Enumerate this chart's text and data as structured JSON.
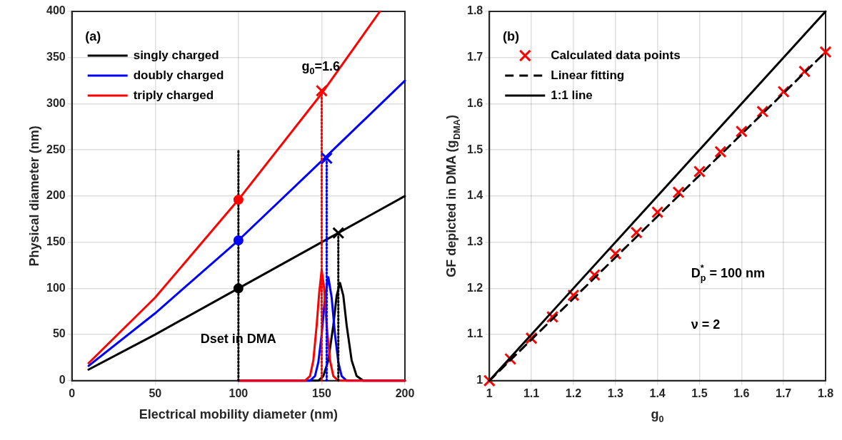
{
  "chart_data": [
    {
      "type": "line",
      "xlabel": "Electrical mobility diameter (nm)",
      "ylabel": "Physical diameter (nm)",
      "xlim": [
        0,
        200
      ],
      "ylim": [
        0,
        400
      ],
      "xticks": [
        0,
        50,
        100,
        150,
        200
      ],
      "yticks": [
        0,
        50,
        100,
        150,
        200,
        250,
        300,
        350,
        400
      ],
      "grid": true,
      "legend": "top left",
      "annotations": [
        "(a)",
        "g$_{0}$=1.6",
        {
          "text": "Dset in DMA",
          "x": 100,
          "y": 45
        }
      ],
      "series": [
        {
          "name": "singly charged",
          "color": "#000000",
          "marker": "none",
          "line_style": "solid",
          "x": [
            10,
            50,
            100,
            150,
            200
          ],
          "values": [
            12,
            50,
            100,
            150,
            200
          ]
        },
        {
          "name": "doubly charged",
          "color": "#0000ff",
          "marker": "none",
          "line_style": "solid",
          "x": [
            10,
            50,
            100,
            150,
            200
          ],
          "values": [
            16,
            73,
            152,
            238,
            325
          ]
        },
        {
          "name": "triply charged",
          "color": "#ff0000",
          "marker": "none",
          "line_style": "solid",
          "x": [
            10,
            50,
            100,
            150,
            185
          ],
          "values": [
            19,
            90,
            196,
            311,
            400
          ]
        },
        {
          "color": "#000000",
          "marker": "none",
          "line_style": "solid",
          "x": [
            100,
            148,
            151,
            154,
            157,
            159,
            161,
            163,
            165,
            168,
            171,
            175,
            200
          ],
          "values": [
            0,
            0,
            5,
            22,
            60,
            92,
            106,
            92,
            60,
            22,
            5,
            0,
            0
          ]
        },
        {
          "color": "#0000ff",
          "marker": "none",
          "line_style": "solid",
          "x": [
            100,
            143,
            146,
            148,
            150,
            152,
            154,
            156,
            158,
            160,
            162,
            165,
            200
          ],
          "values": [
            0,
            0,
            5,
            20,
            50,
            90,
            112,
            90,
            50,
            20,
            5,
            0,
            0
          ]
        },
        {
          "color": "#ff0000",
          "marker": "none",
          "line_style": "solid",
          "x": [
            100,
            140,
            143,
            145,
            147,
            148.5,
            150,
            151.5,
            153,
            155,
            157,
            160,
            200
          ],
          "values": [
            0,
            0,
            5,
            22,
            60,
            95,
            120,
            100,
            60,
            22,
            5,
            0,
            0
          ]
        },
        {
          "color": "#000000",
          "marker": "none",
          "line_style": "dotted",
          "x": [
            100,
            100
          ],
          "values": [
            0,
            250
          ]
        },
        {
          "color": "#ff0000",
          "marker": "none",
          "line_style": "dotted",
          "x": [
            150,
            150
          ],
          "values": [
            0,
            314
          ]
        },
        {
          "color": "#0000ff",
          "marker": "none",
          "line_style": "dotted",
          "x": [
            153,
            153
          ],
          "values": [
            0,
            241
          ]
        },
        {
          "color": "#000000",
          "marker": "none",
          "line_style": "dotted",
          "x": [
            160,
            160
          ],
          "values": [
            0,
            160
          ]
        },
        {
          "color": "#000000",
          "type": "scatter",
          "marker": "circle",
          "x": [
            100
          ],
          "values": [
            100
          ]
        },
        {
          "color": "#0000ff",
          "type": "scatter",
          "marker": "circle",
          "x": [
            100
          ],
          "values": [
            152
          ]
        },
        {
          "color": "#ff0000",
          "type": "scatter",
          "marker": "circle",
          "x": [
            100
          ],
          "values": [
            196
          ]
        },
        {
          "color": "#000000",
          "type": "scatter",
          "marker": "cross",
          "x": [
            160
          ],
          "values": [
            160
          ]
        },
        {
          "color": "#0000ff",
          "type": "scatter",
          "marker": "cross",
          "x": [
            153
          ],
          "values": [
            241
          ]
        },
        {
          "color": "#ff0000",
          "type": "scatter",
          "marker": "cross",
          "x": [
            150
          ],
          "values": [
            314
          ]
        }
      ]
    },
    {
      "type": "scatter",
      "xlabel": "g$_{0}$",
      "ylabel": "GF depicted in DMA (g$_{DMA}$)",
      "xlim": [
        1,
        1.8
      ],
      "ylim": [
        1,
        1.8
      ],
      "xticks": [
        1,
        1.1,
        1.2,
        1.3,
        1.4,
        1.5,
        1.6,
        1.7,
        1.8
      ],
      "yticks": [
        1,
        1.1,
        1.2,
        1.3,
        1.4,
        1.5,
        1.6,
        1.7,
        1.8
      ],
      "grid": true,
      "legend": "top left",
      "annotations": [
        "(b)",
        "D$^{*}$$_{p}$ = 100 nm",
        "ν = 2"
      ],
      "series": [
        {
          "name": "Calculated data points",
          "color": "#ff0000",
          "marker": "cross",
          "x": [
            1,
            1.05,
            1.1,
            1.15,
            1.2,
            1.25,
            1.3,
            1.35,
            1.4,
            1.45,
            1.5,
            1.55,
            1.6,
            1.65,
            1.7,
            1.75,
            1.8
          ],
          "values": [
            1,
            1.047,
            1.092,
            1.138,
            1.185,
            1.229,
            1.275,
            1.321,
            1.365,
            1.408,
            1.453,
            1.496,
            1.54,
            1.583,
            1.626,
            1.67,
            1.712
          ]
        },
        {
          "name": "Linear fitting",
          "color": "#000000",
          "type": "line",
          "marker": "none",
          "line_style": "dashed",
          "x": [
            1,
            1.8
          ],
          "values": [
            1,
            1.712
          ]
        },
        {
          "name": "1:1 line",
          "color": "#000000",
          "type": "line",
          "marker": "none",
          "line_style": "solid",
          "x": [
            1,
            1.8
          ],
          "values": [
            1,
            1.8
          ]
        }
      ]
    }
  ]
}
